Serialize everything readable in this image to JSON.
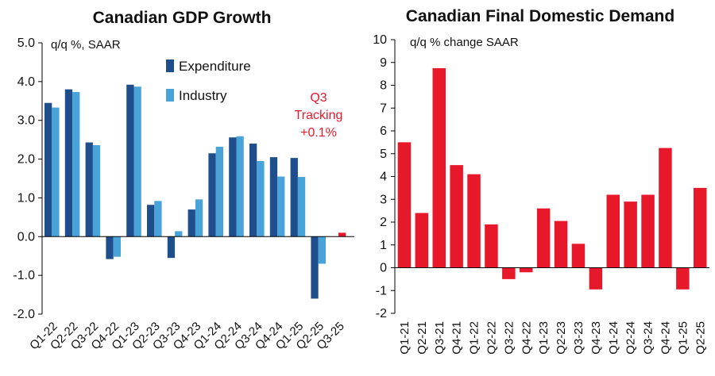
{
  "chart_data": [
    {
      "type": "bar",
      "title": "Canadian GDP Growth",
      "ylabel": "q/q %, SAAR",
      "ylim": [
        -2.0,
        5.0
      ],
      "yticks": [
        "-2.0",
        "-1.0",
        "0.0",
        "1.0",
        "2.0",
        "3.0",
        "4.0",
        "5.0"
      ],
      "categories": [
        "Q1-22",
        "Q2-22",
        "Q3-22",
        "Q4-22",
        "Q1-23",
        "Q2-23",
        "Q3-23",
        "Q4-23",
        "Q1-24",
        "Q2-24",
        "Q3-24",
        "Q4-24",
        "Q1-25",
        "Q2-25",
        "Q3-25"
      ],
      "series": [
        {
          "name": "Expenditure",
          "color": "#1f4e8c",
          "values": [
            3.45,
            3.8,
            2.43,
            -0.58,
            3.92,
            0.82,
            -0.55,
            0.7,
            2.15,
            2.56,
            2.4,
            2.05,
            2.03,
            -1.6,
            null
          ]
        },
        {
          "name": "Industry",
          "color": "#4aa3d8",
          "values": [
            3.33,
            3.73,
            2.36,
            -0.52,
            3.87,
            0.92,
            0.14,
            0.96,
            2.32,
            2.59,
            1.95,
            1.55,
            1.54,
            -0.7,
            null
          ]
        },
        {
          "name": "Q3 Tracking",
          "color": "#e8182b",
          "values": [
            null,
            null,
            null,
            null,
            null,
            null,
            null,
            null,
            null,
            null,
            null,
            null,
            null,
            null,
            0.1
          ]
        }
      ],
      "legend": [
        "Expenditure",
        "Industry"
      ],
      "annotation": {
        "lines": [
          "Q3",
          "Tracking",
          "+0.1%"
        ]
      }
    },
    {
      "type": "bar",
      "title": "Canadian Final Domestic Demand",
      "ylabel": "q/q % change SAAR",
      "ylim": [
        -2,
        10
      ],
      "yticks": [
        "-2",
        "-1",
        "0",
        "1",
        "2",
        "3",
        "4",
        "5",
        "6",
        "7",
        "8",
        "9",
        "10"
      ],
      "categories": [
        "Q1-21",
        "Q2-21",
        "Q3-21",
        "Q4-21",
        "Q1-22",
        "Q2-22",
        "Q3-22",
        "Q4-22",
        "Q1-23",
        "Q2-23",
        "Q3-23",
        "Q4-23",
        "Q1-24",
        "Q2-24",
        "Q3-24",
        "Q4-24",
        "Q1-25",
        "Q2-25"
      ],
      "series": [
        {
          "name": "Final Domestic Demand",
          "color": "#e8182b",
          "values": [
            5.5,
            2.4,
            8.75,
            4.5,
            4.1,
            1.9,
            -0.5,
            -0.2,
            2.6,
            2.05,
            1.05,
            -0.95,
            3.2,
            2.9,
            3.2,
            5.25,
            -0.95,
            3.5
          ]
        }
      ]
    }
  ]
}
